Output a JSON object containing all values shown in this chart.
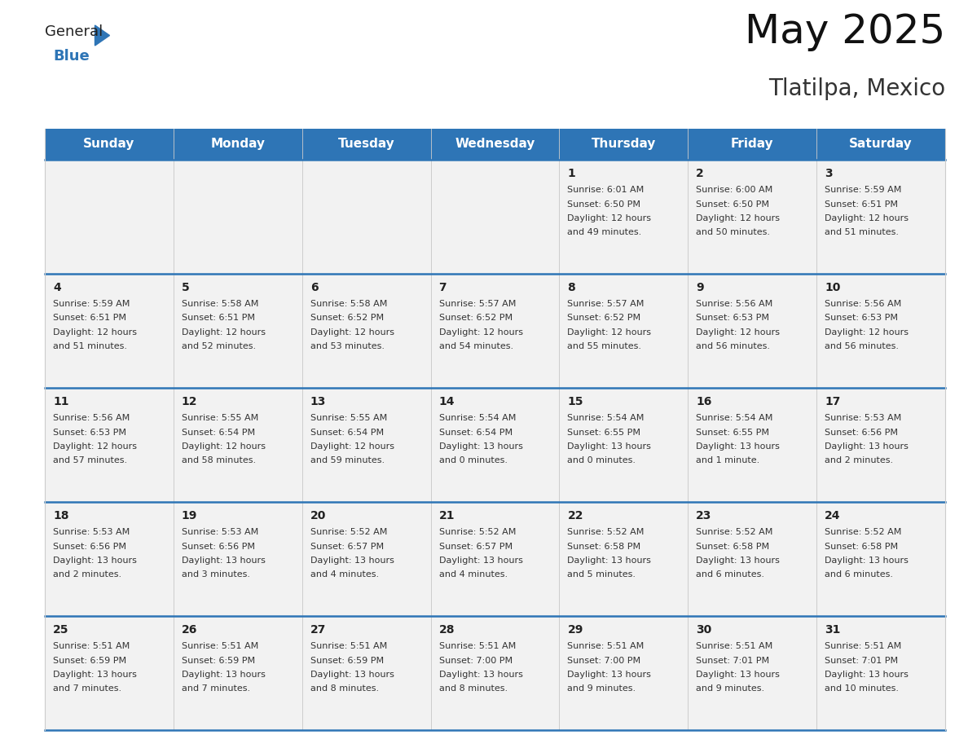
{
  "title": "May 2025",
  "subtitle": "Tlatilpa, Mexico",
  "header_bg_color": "#2E75B6",
  "header_text_color": "#FFFFFF",
  "cell_bg_color": "#F2F2F2",
  "cell_text_color": "#333333",
  "day_num_color": "#222222",
  "grid_line_color": "#2E75B6",
  "grid_line_light": "#CCCCCC",
  "days_of_week": [
    "Sunday",
    "Monday",
    "Tuesday",
    "Wednesday",
    "Thursday",
    "Friday",
    "Saturday"
  ],
  "weeks": [
    [
      {
        "day": "",
        "info": ""
      },
      {
        "day": "",
        "info": ""
      },
      {
        "day": "",
        "info": ""
      },
      {
        "day": "",
        "info": ""
      },
      {
        "day": "1",
        "info": "Sunrise: 6:01 AM\nSunset: 6:50 PM\nDaylight: 12 hours\nand 49 minutes."
      },
      {
        "day": "2",
        "info": "Sunrise: 6:00 AM\nSunset: 6:50 PM\nDaylight: 12 hours\nand 50 minutes."
      },
      {
        "day": "3",
        "info": "Sunrise: 5:59 AM\nSunset: 6:51 PM\nDaylight: 12 hours\nand 51 minutes."
      }
    ],
    [
      {
        "day": "4",
        "info": "Sunrise: 5:59 AM\nSunset: 6:51 PM\nDaylight: 12 hours\nand 51 minutes."
      },
      {
        "day": "5",
        "info": "Sunrise: 5:58 AM\nSunset: 6:51 PM\nDaylight: 12 hours\nand 52 minutes."
      },
      {
        "day": "6",
        "info": "Sunrise: 5:58 AM\nSunset: 6:52 PM\nDaylight: 12 hours\nand 53 minutes."
      },
      {
        "day": "7",
        "info": "Sunrise: 5:57 AM\nSunset: 6:52 PM\nDaylight: 12 hours\nand 54 minutes."
      },
      {
        "day": "8",
        "info": "Sunrise: 5:57 AM\nSunset: 6:52 PM\nDaylight: 12 hours\nand 55 minutes."
      },
      {
        "day": "9",
        "info": "Sunrise: 5:56 AM\nSunset: 6:53 PM\nDaylight: 12 hours\nand 56 minutes."
      },
      {
        "day": "10",
        "info": "Sunrise: 5:56 AM\nSunset: 6:53 PM\nDaylight: 12 hours\nand 56 minutes."
      }
    ],
    [
      {
        "day": "11",
        "info": "Sunrise: 5:56 AM\nSunset: 6:53 PM\nDaylight: 12 hours\nand 57 minutes."
      },
      {
        "day": "12",
        "info": "Sunrise: 5:55 AM\nSunset: 6:54 PM\nDaylight: 12 hours\nand 58 minutes."
      },
      {
        "day": "13",
        "info": "Sunrise: 5:55 AM\nSunset: 6:54 PM\nDaylight: 12 hours\nand 59 minutes."
      },
      {
        "day": "14",
        "info": "Sunrise: 5:54 AM\nSunset: 6:54 PM\nDaylight: 13 hours\nand 0 minutes."
      },
      {
        "day": "15",
        "info": "Sunrise: 5:54 AM\nSunset: 6:55 PM\nDaylight: 13 hours\nand 0 minutes."
      },
      {
        "day": "16",
        "info": "Sunrise: 5:54 AM\nSunset: 6:55 PM\nDaylight: 13 hours\nand 1 minute."
      },
      {
        "day": "17",
        "info": "Sunrise: 5:53 AM\nSunset: 6:56 PM\nDaylight: 13 hours\nand 2 minutes."
      }
    ],
    [
      {
        "day": "18",
        "info": "Sunrise: 5:53 AM\nSunset: 6:56 PM\nDaylight: 13 hours\nand 2 minutes."
      },
      {
        "day": "19",
        "info": "Sunrise: 5:53 AM\nSunset: 6:56 PM\nDaylight: 13 hours\nand 3 minutes."
      },
      {
        "day": "20",
        "info": "Sunrise: 5:52 AM\nSunset: 6:57 PM\nDaylight: 13 hours\nand 4 minutes."
      },
      {
        "day": "21",
        "info": "Sunrise: 5:52 AM\nSunset: 6:57 PM\nDaylight: 13 hours\nand 4 minutes."
      },
      {
        "day": "22",
        "info": "Sunrise: 5:52 AM\nSunset: 6:58 PM\nDaylight: 13 hours\nand 5 minutes."
      },
      {
        "day": "23",
        "info": "Sunrise: 5:52 AM\nSunset: 6:58 PM\nDaylight: 13 hours\nand 6 minutes."
      },
      {
        "day": "24",
        "info": "Sunrise: 5:52 AM\nSunset: 6:58 PM\nDaylight: 13 hours\nand 6 minutes."
      }
    ],
    [
      {
        "day": "25",
        "info": "Sunrise: 5:51 AM\nSunset: 6:59 PM\nDaylight: 13 hours\nand 7 minutes."
      },
      {
        "day": "26",
        "info": "Sunrise: 5:51 AM\nSunset: 6:59 PM\nDaylight: 13 hours\nand 7 minutes."
      },
      {
        "day": "27",
        "info": "Sunrise: 5:51 AM\nSunset: 6:59 PM\nDaylight: 13 hours\nand 8 minutes."
      },
      {
        "day": "28",
        "info": "Sunrise: 5:51 AM\nSunset: 7:00 PM\nDaylight: 13 hours\nand 8 minutes."
      },
      {
        "day": "29",
        "info": "Sunrise: 5:51 AM\nSunset: 7:00 PM\nDaylight: 13 hours\nand 9 minutes."
      },
      {
        "day": "30",
        "info": "Sunrise: 5:51 AM\nSunset: 7:01 PM\nDaylight: 13 hours\nand 9 minutes."
      },
      {
        "day": "31",
        "info": "Sunrise: 5:51 AM\nSunset: 7:01 PM\nDaylight: 13 hours\nand 10 minutes."
      }
    ]
  ],
  "logo_text_general": "General",
  "logo_text_blue": "Blue",
  "logo_triangle_color": "#2E75B6",
  "logo_general_color": "#222222",
  "logo_blue_color": "#2E75B6",
  "title_fontsize": 36,
  "subtitle_fontsize": 20,
  "header_fontsize": 11,
  "day_num_fontsize": 10,
  "info_fontsize": 8
}
